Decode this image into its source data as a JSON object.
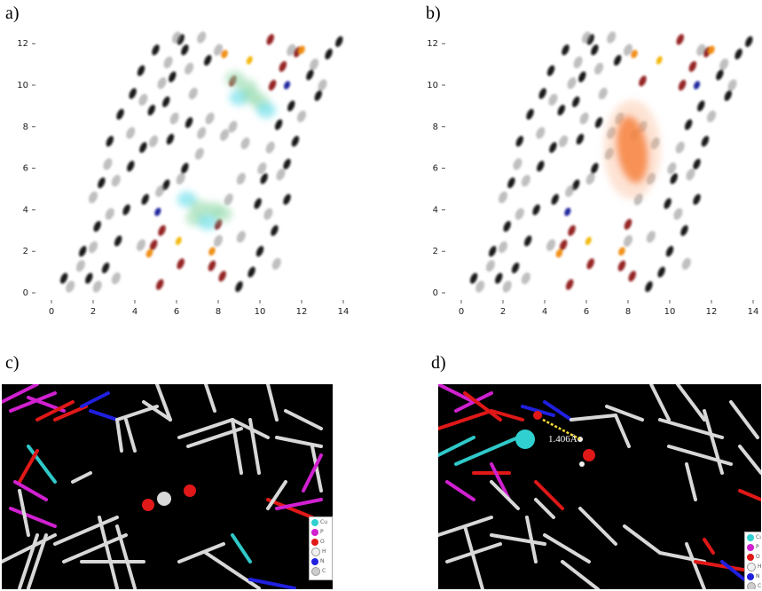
{
  "panels": {
    "a": {
      "label": "a)"
    },
    "b": {
      "label": "b)"
    },
    "c": {
      "label": "c)"
    },
    "d": {
      "label": "d)"
    }
  },
  "axes": {
    "x_ticks": [
      "0",
      "2",
      "4",
      "6",
      "8",
      "10",
      "12",
      "14"
    ],
    "y_ticks": [
      "0",
      "2",
      "4",
      "6",
      "8",
      "10",
      "12"
    ],
    "xlim": [
      -0.5,
      14.5
    ],
    "ylim": [
      -0.3,
      12.5
    ]
  },
  "colors": {
    "black_density": "#111111",
    "grey_density": "#8a8a8a",
    "dark_red_density": "#8b1010",
    "orange_density": "#f08a10",
    "yellow_density": "#f2b400",
    "blue_density": "#16209a",
    "cyan_density": "#4fd8e8",
    "green_density": "#8fd8a8",
    "big_orange_density": "#f36b1c",
    "background_3d": "#000000",
    "bond_white": "#d8d8d8",
    "bond_red": "#e01818",
    "bond_magenta": "#d020d0",
    "bond_blue": "#2020e0",
    "bond_cyan": "#30c8c8",
    "hbond_yellow": "#ffdd33"
  },
  "legend_items": [
    {
      "symbol": "Cu",
      "color": "#30d0d0"
    },
    {
      "symbol": "P",
      "color": "#d020d0"
    },
    {
      "symbol": "O",
      "color": "#e01818"
    },
    {
      "symbol": "H",
      "color": "#f0f0f0"
    },
    {
      "symbol": "N",
      "color": "#2020e0"
    },
    {
      "symbol": "C",
      "color": "#bbbbbb"
    }
  ],
  "annotations": {
    "d_distance": "1.406Å"
  }
}
